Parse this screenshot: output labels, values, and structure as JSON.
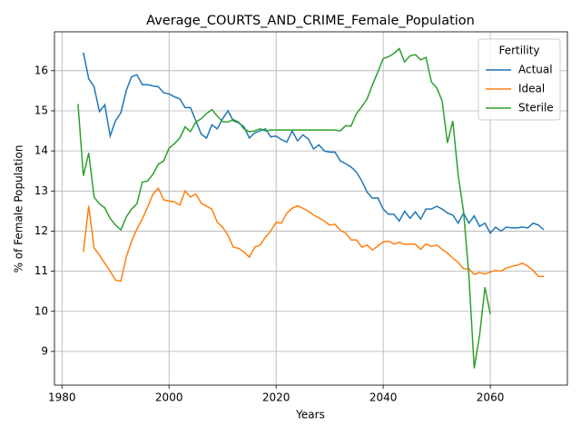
{
  "chart_data": {
    "type": "line",
    "title": "Average_COURTS_AND_CRIME_Female_Population",
    "x_label": "Years",
    "y_label": "% of Female Population",
    "legend_title": "Fertility",
    "legend_position": "upper right",
    "grid": true,
    "x": [
      1983,
      1984,
      1985,
      1986,
      1987,
      1988,
      1989,
      1990,
      1991,
      1992,
      1993,
      1994,
      1995,
      1996,
      1997,
      1998,
      1999,
      2000,
      2001,
      2002,
      2003,
      2004,
      2005,
      2006,
      2007,
      2008,
      2009,
      2010,
      2011,
      2012,
      2013,
      2014,
      2015,
      2016,
      2017,
      2018,
      2019,
      2020,
      2021,
      2022,
      2023,
      2024,
      2025,
      2026,
      2027,
      2028,
      2029,
      2030,
      2031,
      2032,
      2033,
      2034,
      2035,
      2036,
      2037,
      2038,
      2039,
      2040,
      2041,
      2042,
      2043,
      2044,
      2045,
      2046,
      2047,
      2048,
      2049,
      2050,
      2051,
      2052,
      2053,
      2054,
      2055,
      2056,
      2057,
      2058,
      2059,
      2060,
      2061,
      2062,
      2063,
      2064,
      2065,
      2066,
      2067,
      2068,
      2069,
      2070
    ],
    "series": [
      {
        "name": "Actual",
        "color": "#1f77b4",
        "values": [
          null,
          16.45,
          15.8,
          15.6,
          14.98,
          15.15,
          14.37,
          14.75,
          14.95,
          15.5,
          15.85,
          15.9,
          15.65,
          15.65,
          15.62,
          15.6,
          15.45,
          15.42,
          15.35,
          15.3,
          15.08,
          15.08,
          14.75,
          14.42,
          14.32,
          14.65,
          14.55,
          14.8,
          15.0,
          14.75,
          14.7,
          14.6,
          14.32,
          14.45,
          14.5,
          14.55,
          14.35,
          14.37,
          14.28,
          14.22,
          14.5,
          14.25,
          14.4,
          14.3,
          14.05,
          14.15,
          14.0,
          13.97,
          13.97,
          13.75,
          13.68,
          13.6,
          13.47,
          13.25,
          12.97,
          12.82,
          12.83,
          12.55,
          12.42,
          12.42,
          12.25,
          12.5,
          12.32,
          12.48,
          12.3,
          12.55,
          12.55,
          12.62,
          12.55,
          12.45,
          12.4,
          12.2,
          12.45,
          12.2,
          12.38,
          12.12,
          12.2,
          11.95,
          12.1,
          12.0,
          12.1,
          12.08,
          12.08,
          12.1,
          12.08,
          12.2,
          12.15,
          12.03
        ]
      },
      {
        "name": "Ideal",
        "color": "#ff7f0e",
        "values": [
          null,
          11.48,
          12.63,
          11.58,
          11.4,
          11.2,
          11.0,
          10.78,
          10.75,
          11.35,
          11.75,
          12.05,
          12.3,
          12.6,
          12.92,
          13.07,
          12.78,
          12.75,
          12.73,
          12.65,
          13.0,
          12.85,
          12.93,
          12.7,
          12.62,
          12.55,
          12.22,
          12.1,
          11.9,
          11.6,
          11.57,
          11.48,
          11.35,
          11.6,
          11.65,
          11.85,
          12.0,
          12.22,
          12.2,
          12.45,
          12.57,
          12.63,
          12.57,
          12.5,
          12.4,
          12.33,
          12.25,
          12.15,
          12.17,
          12.02,
          11.95,
          11.78,
          11.78,
          11.6,
          11.65,
          11.53,
          11.63,
          11.73,
          11.75,
          11.68,
          11.72,
          11.67,
          11.68,
          11.67,
          11.55,
          11.68,
          11.62,
          11.65,
          11.55,
          11.45,
          11.33,
          11.22,
          11.06,
          11.06,
          10.92,
          10.97,
          10.93,
          10.98,
          11.02,
          11.0,
          11.08,
          11.12,
          11.15,
          11.2,
          11.13,
          11.02,
          10.87,
          10.87
        ]
      },
      {
        "name": "Sterile",
        "color": "#2ca02c",
        "values": [
          15.17,
          13.38,
          13.95,
          12.85,
          12.68,
          12.58,
          12.32,
          12.15,
          12.03,
          12.35,
          12.55,
          12.68,
          13.22,
          13.25,
          13.42,
          13.67,
          13.75,
          14.07,
          14.18,
          14.32,
          14.6,
          14.48,
          14.72,
          14.8,
          14.93,
          15.03,
          14.87,
          14.73,
          14.72,
          14.78,
          14.72,
          14.55,
          14.48,
          14.5,
          14.55,
          14.5,
          14.52,
          14.52,
          14.52,
          14.52,
          14.52,
          14.52,
          14.52,
          14.52,
          14.52,
          14.52,
          14.52,
          14.52,
          14.52,
          14.5,
          14.63,
          14.62,
          14.93,
          15.1,
          15.3,
          15.65,
          15.97,
          16.3,
          16.35,
          16.43,
          16.55,
          16.22,
          16.37,
          16.4,
          16.27,
          16.33,
          15.72,
          15.57,
          15.25,
          14.2,
          14.75,
          13.4,
          12.5,
          10.9,
          8.58,
          9.4,
          10.6,
          9.93,
          null,
          null,
          null,
          null,
          null,
          null,
          null,
          null,
          null,
          null
        ]
      }
    ],
    "xlim": [
      1978.6,
      2074.4
    ],
    "xticks": [
      1980,
      2000,
      2020,
      2040,
      2060
    ],
    "ylim": [
      8.16,
      16.97
    ],
    "yticks": [
      9,
      10,
      11,
      12,
      13,
      14,
      15,
      16
    ]
  }
}
